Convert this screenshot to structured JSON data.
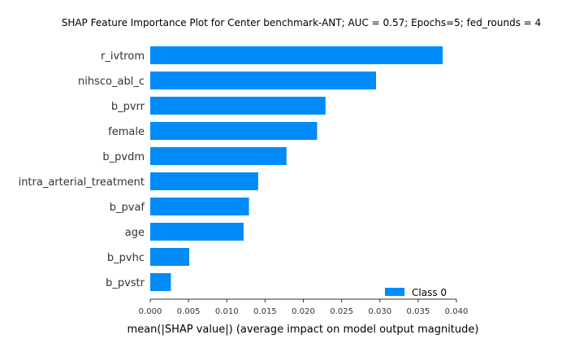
{
  "chart_data": {
    "type": "bar",
    "orientation": "horizontal",
    "title": "SHAP Feature Importance Plot for Center benchmark-ANT; AUC = 0.57; Epochs=5; fed_rounds = 4",
    "xlabel": "mean(|SHAP value|) (average impact on model output magnitude)",
    "ylabel": "",
    "categories": [
      "r_ivtrom",
      "nihsco_abl_c",
      "b_pvrr",
      "female",
      "b_pvdm",
      "intra_arterial_treatment",
      "b_pvaf",
      "age",
      "b_pvhc",
      "b_pvstr"
    ],
    "series": [
      {
        "name": "Class 0",
        "color": "#008bfb",
        "values": [
          0.0382,
          0.0295,
          0.0229,
          0.0218,
          0.0178,
          0.0141,
          0.0129,
          0.0122,
          0.0051,
          0.0027
        ]
      }
    ],
    "xlim": [
      0,
      0.04
    ],
    "xticks": [
      "0.000",
      "0.005",
      "0.010",
      "0.015",
      "0.020",
      "0.025",
      "0.030",
      "0.035",
      "0.040"
    ],
    "grid": false,
    "legend": "bottom-right"
  }
}
